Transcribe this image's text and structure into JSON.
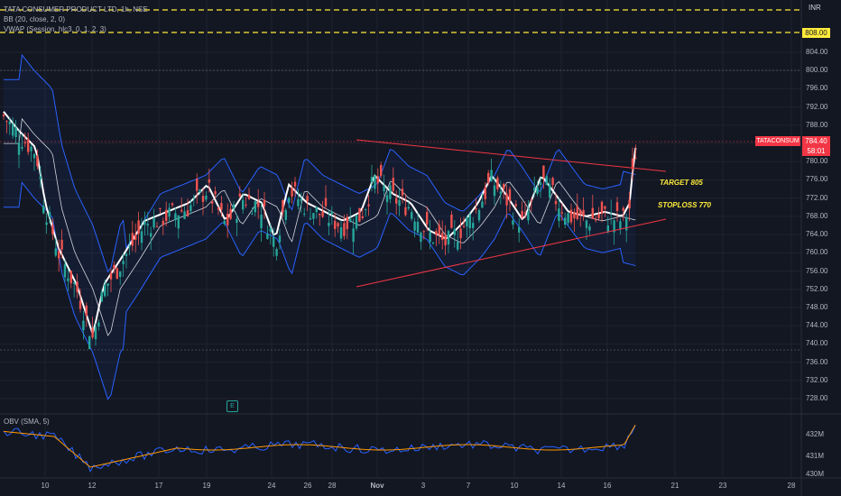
{
  "legend": {
    "symbol_line": "TATA CONSUMER PRODUCT LTD, 1h, NSE",
    "bb_line": "BB (20, close, 2, 0)",
    "vwap_line": "VWAP (Session, hlc3, 0, 1, 2, 3)"
  },
  "price_axis": {
    "currency": "INR",
    "ticks": [
      "804.00",
      "800.00",
      "796.00",
      "792.00",
      "788.00",
      "784.00",
      "780.00",
      "776.00",
      "772.00",
      "768.00",
      "764.00",
      "760.00",
      "756.00",
      "752.00",
      "748.00",
      "744.00",
      "740.00",
      "736.00",
      "732.00",
      "728.00"
    ],
    "yellow_level": "808.00",
    "current_price": "784.40",
    "countdown": "58:01",
    "symbol_tag": "TATACONSUM"
  },
  "obv_panel": {
    "legend": "OBV (SMA, 5)",
    "ticks": [
      "432M",
      "431M",
      "430M"
    ]
  },
  "time_axis": {
    "ticks": [
      "10",
      "12",
      "17",
      "19",
      "24",
      "26",
      "28",
      "Nov",
      "3",
      "7",
      "10",
      "14",
      "16",
      "21",
      "23",
      "28"
    ]
  },
  "annotations": {
    "target": "TARGET 805",
    "stoploss": "STOPLOSS 770",
    "earnings_badge": "E"
  },
  "colors": {
    "background": "#131722",
    "up": "#26a69a",
    "down": "#ef5350",
    "bands": "#2962ff",
    "trendline": "#f23645",
    "yellow": "#ffeb3b",
    "obv": "#2962ff",
    "obv_sma": "#ff9800"
  }
}
